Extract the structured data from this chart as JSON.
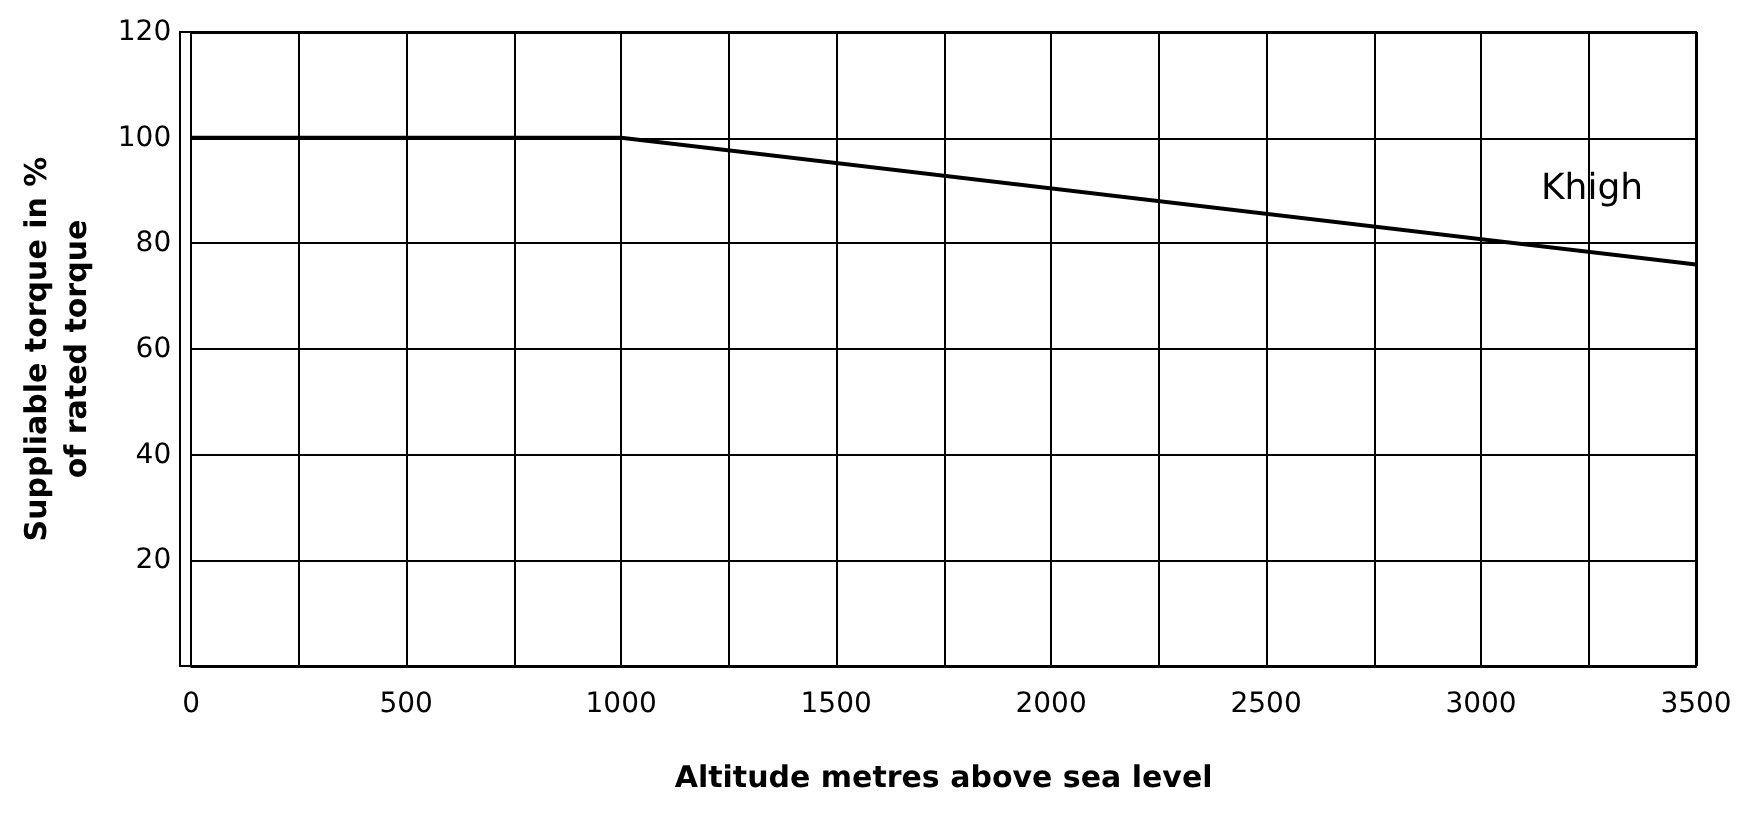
{
  "chart_data": {
    "type": "line",
    "xlabel": "Altitude metres above sea level",
    "ylabel": "Suppliable torque in %\nof rated torque",
    "x": [
      0,
      1000,
      3500
    ],
    "series": [
      {
        "name": "Khigh",
        "color": "#000000",
        "values": [
          100,
          100,
          76
        ]
      }
    ],
    "xlim": [
      0,
      3500
    ],
    "xticks": [
      0,
      {
        "value": 250,
        "label": null
      },
      500,
      {
        "value": 750,
        "label": null
      },
      1000,
      {
        "value": 1250,
        "label": null
      },
      1500,
      {
        "value": 1750,
        "label": null
      },
      2000,
      {
        "value": 2250,
        "label": null
      },
      2500,
      {
        "value": 2750,
        "label": null
      },
      3000,
      {
        "value": 3250,
        "label": null
      },
      3500
    ],
    "ylim": [
      0,
      120
    ],
    "yticks": [
      {
        "value": 0,
        "label": null
      },
      20,
      40,
      60,
      80,
      100,
      120
    ],
    "grid": true,
    "marker": "none",
    "line_style": "solid"
  }
}
